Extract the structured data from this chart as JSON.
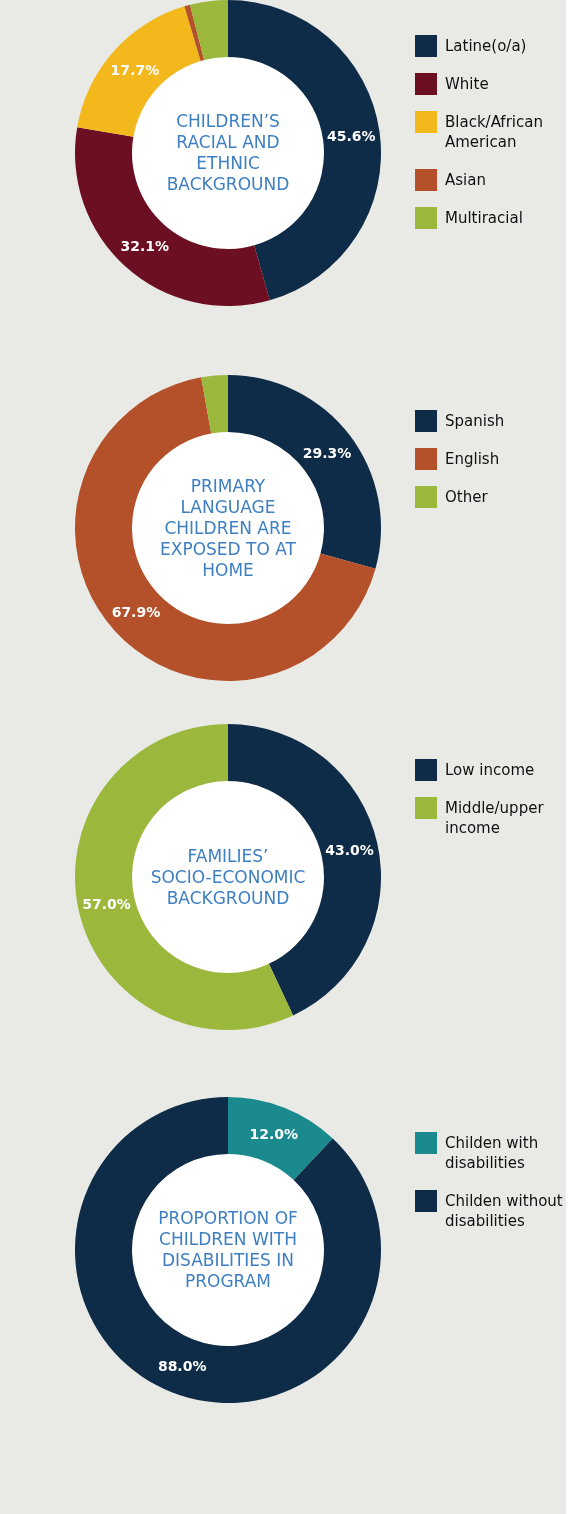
{
  "chart_data": [
    {
      "type": "donut",
      "title": "CHILDREN’S RACIAL AND ETHNIC BACKGROUND",
      "categories": [
        "Latine(o/a)",
        "White",
        "Black/African American",
        "Asian",
        "Multiracial"
      ],
      "values": [
        45.6,
        32.1,
        17.7,
        0.6,
        4.0
      ],
      "colors": [
        "#0e2b47",
        "#6d0f22",
        "#f3b81c",
        "#b4512a",
        "#9bb83c"
      ],
      "value_labels": [
        "45.6%",
        "32.1%",
        "17.7%",
        null,
        null
      ],
      "legend": "right"
    },
    {
      "type": "donut",
      "title": "PRIMARY LANGUAGE CHILDREN ARE EXPOSED TO AT HOME",
      "categories": [
        "Spanish",
        "English",
        "Other"
      ],
      "values": [
        29.3,
        67.9,
        2.8
      ],
      "colors": [
        "#0e2b47",
        "#b4512a",
        "#9bb83c"
      ],
      "value_labels": [
        "29.3%",
        "67.9%",
        null
      ],
      "legend": "right"
    },
    {
      "type": "donut",
      "title": "FAMILIES’ SOCIO-ECONOMIC BACKGROUND",
      "categories": [
        "Low income",
        "Middle/upper income"
      ],
      "values": [
        43.0,
        57.0
      ],
      "colors": [
        "#0e2b47",
        "#9bb83c"
      ],
      "value_labels": [
        "43.0%",
        "57.0%"
      ],
      "legend": "right"
    },
    {
      "type": "donut",
      "title": "PROPORTION OF CHILDREN WITH DISABILITIES IN PROGRAM",
      "categories": [
        "Childen with disabilities",
        "Childen without disabilities"
      ],
      "values": [
        12.0,
        88.0
      ],
      "colors": [
        "#1b8a8e",
        "#0e2b47"
      ],
      "value_labels": [
        "12.0%",
        "88.0%"
      ],
      "legend": "right"
    }
  ]
}
